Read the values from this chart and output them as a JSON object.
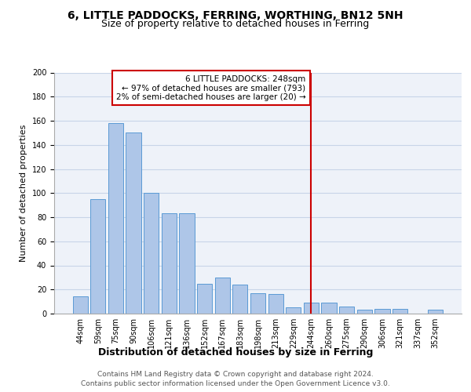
{
  "title": "6, LITTLE PADDOCKS, FERRING, WORTHING, BN12 5NH",
  "subtitle": "Size of property relative to detached houses in Ferring",
  "xlabel": "Distribution of detached houses by size in Ferring",
  "ylabel": "Number of detached properties",
  "categories": [
    "44sqm",
    "59sqm",
    "75sqm",
    "90sqm",
    "106sqm",
    "121sqm",
    "136sqm",
    "152sqm",
    "167sqm",
    "183sqm",
    "198sqm",
    "213sqm",
    "229sqm",
    "244sqm",
    "260sqm",
    "275sqm",
    "290sqm",
    "306sqm",
    "321sqm",
    "337sqm",
    "352sqm"
  ],
  "values": [
    14,
    95,
    158,
    150,
    100,
    83,
    83,
    25,
    30,
    24,
    17,
    16,
    5,
    9,
    9,
    6,
    3,
    4,
    4,
    0,
    3
  ],
  "bar_color": "#aec6e8",
  "bar_edge_color": "#5b9bd5",
  "vline_x_index": 13,
  "vline_color": "#cc0000",
  "annotation_line1": "6 LITTLE PADDOCKS: 248sqm",
  "annotation_line2": "← 97% of detached houses are smaller (793)",
  "annotation_line3": "2% of semi-detached houses are larger (20) →",
  "annotation_box_color": "#cc0000",
  "ylim": [
    0,
    200
  ],
  "yticks": [
    0,
    20,
    40,
    60,
    80,
    100,
    120,
    140,
    160,
    180,
    200
  ],
  "grid_color": "#c8d4e8",
  "background_color": "#eef2f9",
  "footer_line1": "Contains HM Land Registry data © Crown copyright and database right 2024.",
  "footer_line2": "Contains public sector information licensed under the Open Government Licence v3.0.",
  "title_fontsize": 10,
  "subtitle_fontsize": 9,
  "xlabel_fontsize": 9,
  "ylabel_fontsize": 8,
  "tick_fontsize": 7,
  "annotation_fontsize": 7.5,
  "footer_fontsize": 6.5
}
